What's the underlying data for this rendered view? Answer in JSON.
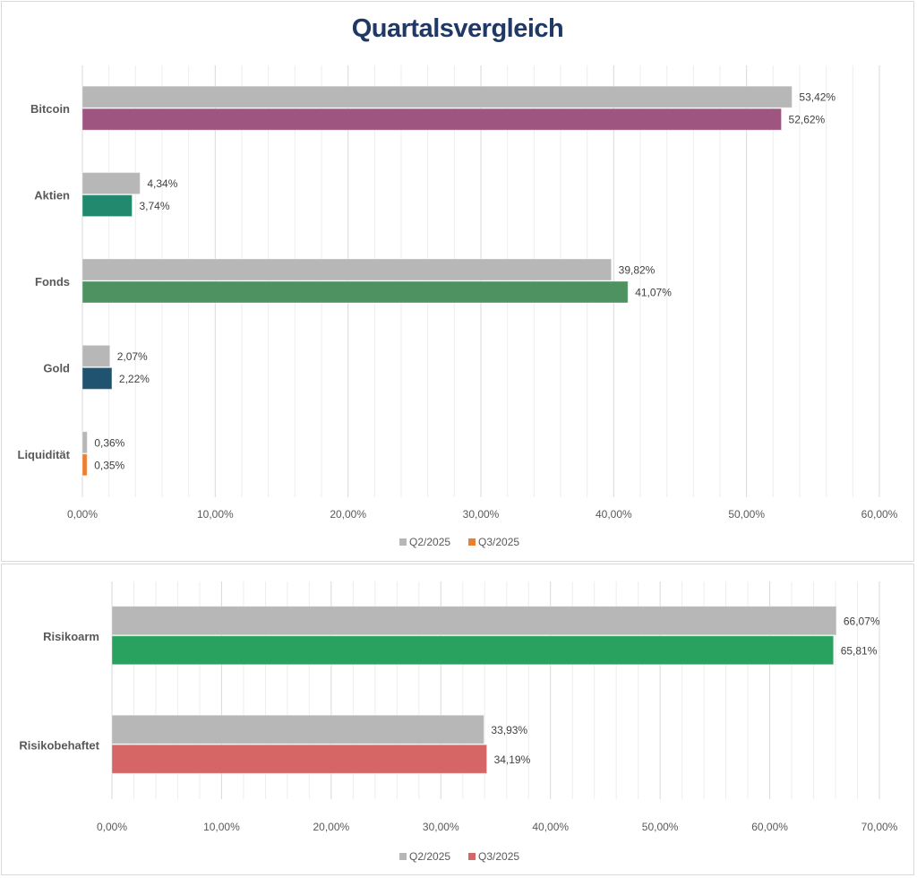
{
  "chart_data": [
    {
      "type": "bar",
      "orientation": "horizontal",
      "title": "Quartalsvergleich",
      "categories": [
        "Bitcoin",
        "Aktien",
        "Fonds",
        "Gold",
        "Liquidität"
      ],
      "series": [
        {
          "name": "Q2/2025",
          "values": [
            53.42,
            4.34,
            39.82,
            2.07,
            0.36
          ],
          "labels": [
            "53,42%",
            "4,34%",
            "39,82%",
            "2,07%",
            "0,36%"
          ],
          "color": "#b7b7b7"
        },
        {
          "name": "Q3/2025",
          "values": [
            52.62,
            3.74,
            41.07,
            2.22,
            0.35
          ],
          "labels": [
            "52,62%",
            "3,74%",
            "41,07%",
            "2,22%",
            "0,35%"
          ],
          "colors": [
            "#9e5580",
            "#22896e",
            "#4f9262",
            "#1f5370",
            "#ed7d31"
          ]
        }
      ],
      "xlim": [
        0,
        60
      ],
      "xticks": [
        0,
        10,
        20,
        30,
        40,
        50,
        60
      ],
      "xtick_labels": [
        "0,00%",
        "10,00%",
        "20,00%",
        "30,00%",
        "40,00%",
        "50,00%",
        "60,00%"
      ],
      "minor_step": 2,
      "grid": true,
      "legend": {
        "position": "bottom",
        "entries": [
          {
            "name": "Q2/2025",
            "color": "#b7b7b7"
          },
          {
            "name": "Q3/2025",
            "color": "#ed7d31"
          }
        ]
      },
      "xlabel": "",
      "ylabel": ""
    },
    {
      "type": "bar",
      "orientation": "horizontal",
      "title": "",
      "categories": [
        "Risikoarm",
        "Risikobehaftet"
      ],
      "series": [
        {
          "name": "Q2/2025",
          "values": [
            66.07,
            33.93
          ],
          "labels": [
            "66,07%",
            "33,93%"
          ],
          "color": "#b7b7b7"
        },
        {
          "name": "Q3/2025",
          "values": [
            65.81,
            34.19
          ],
          "labels": [
            "65,81%",
            "34,19%"
          ],
          "colors": [
            "#2aa25f",
            "#d66666"
          ]
        }
      ],
      "xlim": [
        0,
        70
      ],
      "xticks": [
        0,
        10,
        20,
        30,
        40,
        50,
        60,
        70
      ],
      "xtick_labels": [
        "0,00%",
        "10,00%",
        "20,00%",
        "30,00%",
        "40,00%",
        "50,00%",
        "60,00%",
        "70,00%"
      ],
      "minor_step": 2,
      "grid": true,
      "legend": {
        "position": "bottom",
        "entries": [
          {
            "name": "Q2/2025",
            "color": "#b7b7b7"
          },
          {
            "name": "Q3/2025",
            "color": "#d66666"
          }
        ]
      },
      "xlabel": "",
      "ylabel": ""
    }
  ]
}
